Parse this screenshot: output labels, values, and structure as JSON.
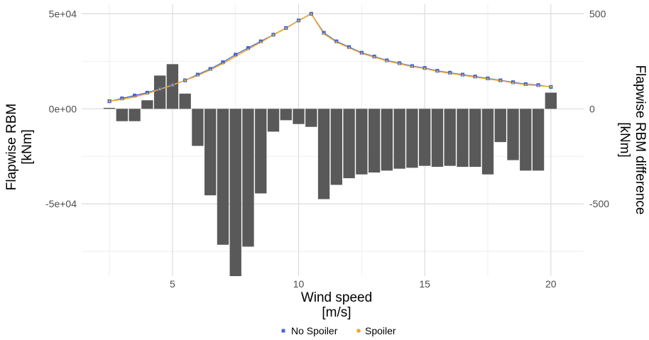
{
  "chart_data": {
    "type": "bar+line",
    "x_axis": {
      "label_line1": "Wind speed",
      "label_line2": "[m/s]",
      "range": [
        1.4,
        21.3
      ],
      "ticks": [
        5,
        10,
        15,
        20
      ],
      "tick_labels": [
        "5",
        "10",
        "15",
        "20"
      ]
    },
    "y_axis_left": {
      "label_line1": "Flapwise RBM",
      "label_line2": "[kNm]",
      "range": [
        -88000,
        55000
      ],
      "ticks": [
        -50000,
        0,
        50000
      ],
      "tick_labels": [
        "-5e+04",
        "0e+00",
        "5e+04"
      ]
    },
    "y_axis_right": {
      "label_line1": "Flapwise RBM difference",
      "label_line2": "[kNm]",
      "range": [
        -880,
        550
      ],
      "ticks": [
        -500,
        0,
        500
      ],
      "tick_labels": [
        "-500",
        "0",
        "500"
      ]
    },
    "grid": true,
    "legend": {
      "position": "bottom",
      "items": [
        {
          "name": "No Spoiler",
          "color": "#4169d1",
          "marker": "square"
        },
        {
          "name": "Spoiler",
          "color": "#f0a830",
          "marker": "circle"
        }
      ]
    },
    "difference_bars": {
      "axis": "right",
      "color": "#595959",
      "x": [
        2.5,
        3.0,
        3.5,
        4.0,
        4.5,
        5.0,
        5.5,
        6.0,
        6.5,
        7.0,
        7.5,
        8.0,
        8.5,
        9.0,
        9.5,
        10.0,
        10.5,
        11.0,
        11.5,
        12.0,
        12.5,
        13.0,
        13.5,
        14.0,
        14.5,
        15.0,
        15.5,
        16.0,
        16.5,
        17.0,
        17.5,
        18.0,
        18.5,
        19.0,
        19.5,
        20.0
      ],
      "values": [
        5,
        -65,
        -65,
        45,
        175,
        235,
        80,
        -195,
        -455,
        -715,
        -880,
        -725,
        -445,
        -120,
        -60,
        -80,
        -95,
        -475,
        -400,
        -365,
        -345,
        -335,
        -325,
        -315,
        -310,
        -300,
        -305,
        -300,
        -305,
        -305,
        -345,
        -175,
        -270,
        -325,
        -325,
        85
      ]
    },
    "series": [
      {
        "name": "No Spoiler",
        "axis": "left",
        "color": "#4169d1",
        "x": [
          2.5,
          3.0,
          3.5,
          4.0,
          4.5,
          5.0,
          5.5,
          6.0,
          6.5,
          7.0,
          7.5,
          8.0,
          8.5,
          9.0,
          9.5,
          10.0,
          10.5,
          11.0,
          11.5,
          12.0,
          12.5,
          13.0,
          13.5,
          14.0,
          14.5,
          15.0,
          15.5,
          16.0,
          16.5,
          17.0,
          17.5,
          18.0,
          18.5,
          19.0,
          19.5,
          20.0
        ],
        "values": [
          4000,
          5500,
          7000,
          8500,
          10500,
          12500,
          15000,
          18000,
          21000,
          24500,
          28500,
          32000,
          35500,
          39000,
          42500,
          46500,
          50000,
          40000,
          35500,
          32500,
          29500,
          27500,
          25500,
          24000,
          22500,
          21500,
          20000,
          19000,
          18000,
          17000,
          16000,
          15000,
          14000,
          13000,
          12500,
          11500
        ]
      },
      {
        "name": "Spoiler",
        "axis": "left",
        "color": "#f0a830",
        "x": [
          2.5,
          3.0,
          3.5,
          4.0,
          4.5,
          5.0,
          5.5,
          6.0,
          6.5,
          7.0,
          7.5,
          8.0,
          8.5,
          9.0,
          9.5,
          10.0,
          10.5,
          11.0,
          11.5,
          12.0,
          12.5,
          13.0,
          13.5,
          14.0,
          14.5,
          15.0,
          15.5,
          16.0,
          16.5,
          17.0,
          17.5,
          18.0,
          18.5,
          19.0,
          19.5,
          20.0
        ],
        "values": [
          4000,
          5000,
          6300,
          8000,
          10300,
          12500,
          15000,
          17500,
          20500,
          23800,
          27600,
          31300,
          35000,
          38900,
          42400,
          46400,
          49900,
          39500,
          35100,
          32100,
          29200,
          27200,
          25200,
          23700,
          22200,
          21200,
          19700,
          18700,
          17700,
          16700,
          15700,
          14800,
          13700,
          12700,
          12200,
          11600
        ]
      }
    ]
  }
}
